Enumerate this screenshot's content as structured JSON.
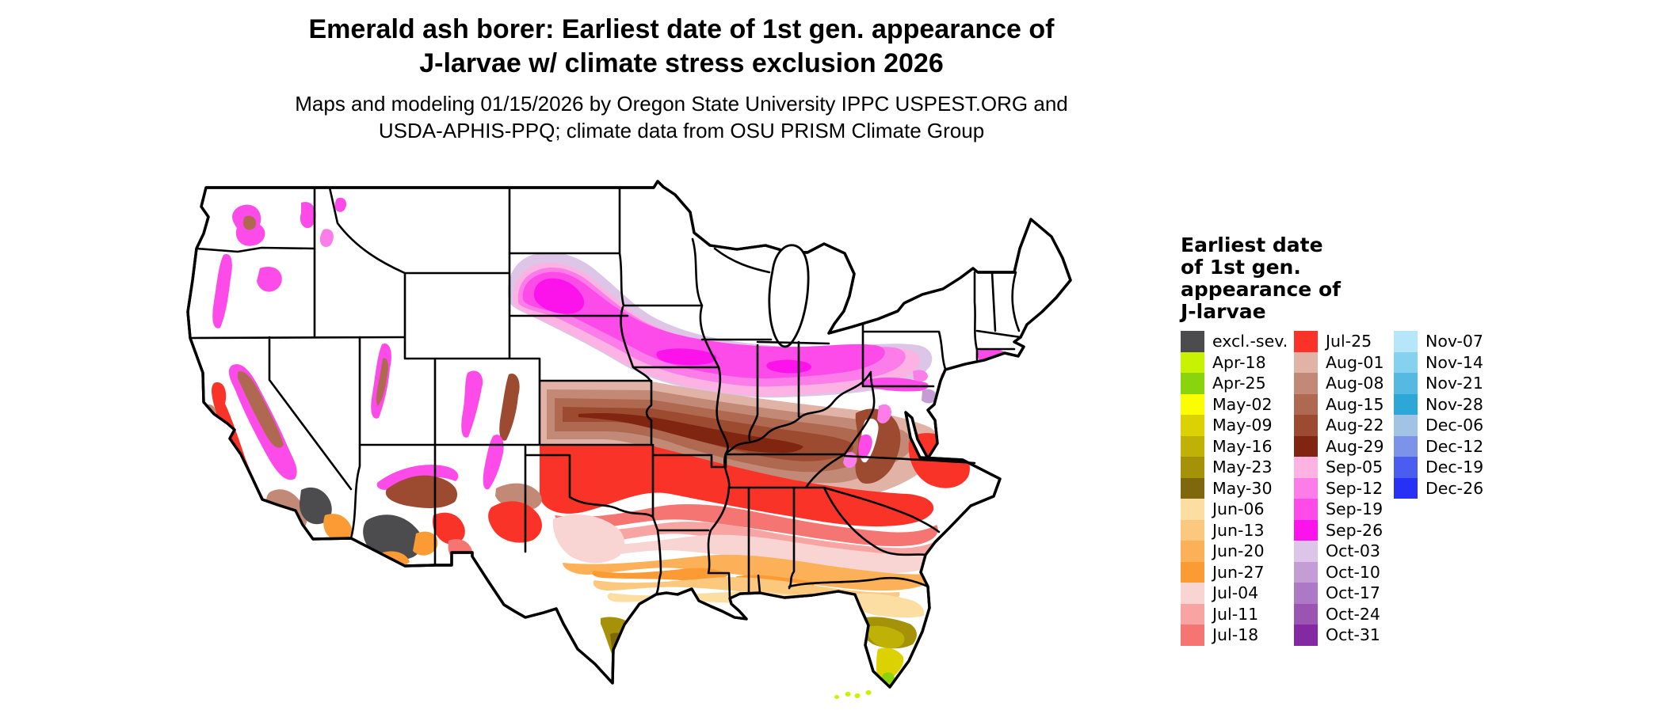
{
  "title": {
    "line1": "Emerald ash borer: Earliest date of 1st gen. appearance of",
    "line2": "J-larvae w/ climate stress exclusion 2026"
  },
  "subtitle": {
    "line1": "Maps and modeling 01/15/2026 by Oregon State University IPPC USPEST.ORG and",
    "line2": "USDA-APHIS-PPQ; climate data from OSU PRISM Climate Group"
  },
  "legend": {
    "title_lines": [
      "Earliest date",
      "of 1st gen.",
      "appearance of",
      "J-larvae"
    ],
    "columns": [
      [
        {
          "label": "excl.-sev.",
          "color": "#4c4c4e"
        },
        {
          "label": "Apr-18",
          "color": "#c7f201"
        },
        {
          "label": "Apr-25",
          "color": "#89d40c"
        },
        {
          "label": "May-02",
          "color": "#fcfd00"
        },
        {
          "label": "May-09",
          "color": "#dcd203"
        },
        {
          "label": "May-16",
          "color": "#c0b106"
        },
        {
          "label": "May-23",
          "color": "#a59209"
        },
        {
          "label": "May-30",
          "color": "#7e670c"
        },
        {
          "label": "Jun-06",
          "color": "#fcdda2"
        },
        {
          "label": "Jun-13",
          "color": "#fcc87d"
        },
        {
          "label": "Jun-20",
          "color": "#fcb158"
        },
        {
          "label": "Jun-27",
          "color": "#fc9a33"
        },
        {
          "label": "Jul-04",
          "color": "#f8d5d3"
        },
        {
          "label": "Jul-11",
          "color": "#f7a4a2"
        },
        {
          "label": "Jul-18",
          "color": "#f47571"
        }
      ],
      [
        {
          "label": "Jul-25",
          "color": "#fa3329"
        },
        {
          "label": "Aug-01",
          "color": "#e1b3a7"
        },
        {
          "label": "Aug-08",
          "color": "#c28a76"
        },
        {
          "label": "Aug-15",
          "color": "#b06951"
        },
        {
          "label": "Aug-22",
          "color": "#9c4a30"
        },
        {
          "label": "Aug-29",
          "color": "#802610"
        },
        {
          "label": "Sep-05",
          "color": "#fcb3e3"
        },
        {
          "label": "Sep-12",
          "color": "#fc7dea"
        },
        {
          "label": "Sep-19",
          "color": "#fc4be9"
        },
        {
          "label": "Sep-26",
          "color": "#fc13ec"
        },
        {
          "label": "Oct-03",
          "color": "#dcc5e6"
        },
        {
          "label": "Oct-10",
          "color": "#c59dd5"
        },
        {
          "label": "Oct-17",
          "color": "#ad78c5"
        },
        {
          "label": "Oct-24",
          "color": "#9a55b3"
        },
        {
          "label": "Oct-31",
          "color": "#8429a3"
        }
      ],
      [
        {
          "label": "Nov-07",
          "color": "#b6e6fa"
        },
        {
          "label": "Nov-14",
          "color": "#86d1ef"
        },
        {
          "label": "Nov-21",
          "color": "#55b9e1"
        },
        {
          "label": "Nov-28",
          "color": "#2ca7d7"
        },
        {
          "label": "Dec-06",
          "color": "#a3c3e4"
        },
        {
          "label": "Dec-12",
          "color": "#7c93e9"
        },
        {
          "label": "Dec-19",
          "color": "#4b5df1"
        },
        {
          "label": "Dec-26",
          "color": "#2731f6"
        }
      ]
    ]
  }
}
